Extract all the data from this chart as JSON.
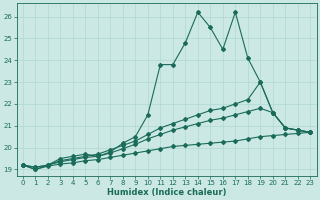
{
  "xlabel": "Humidex (Indice chaleur)",
  "bg_color": "#cbe8e4",
  "grid_color": "#b0d8d0",
  "line_color": "#1a6b5a",
  "xlim": [
    -0.5,
    23.5
  ],
  "ylim": [
    18.7,
    26.6
  ],
  "xticks": [
    0,
    1,
    2,
    3,
    4,
    5,
    6,
    7,
    8,
    9,
    10,
    11,
    12,
    13,
    14,
    15,
    16,
    17,
    18,
    19,
    20,
    21,
    22,
    23
  ],
  "yticks": [
    19,
    20,
    21,
    22,
    23,
    24,
    25,
    26
  ],
  "series": {
    "line1": [
      19.2,
      19.0,
      19.2,
      19.5,
      19.6,
      19.7,
      19.6,
      19.8,
      20.2,
      20.5,
      21.5,
      23.8,
      23.8,
      24.8,
      26.2,
      25.5,
      24.5,
      26.2,
      24.1,
      23.0,
      21.6,
      20.9,
      20.8,
      20.7
    ],
    "line2": [
      19.2,
      19.1,
      19.2,
      19.4,
      19.5,
      19.6,
      19.7,
      19.9,
      20.1,
      20.3,
      20.6,
      20.9,
      21.1,
      21.3,
      21.5,
      21.7,
      21.8,
      22.0,
      22.2,
      23.0,
      21.6,
      20.9,
      20.8,
      20.7
    ],
    "line3": [
      19.2,
      19.1,
      19.2,
      19.35,
      19.45,
      19.55,
      19.6,
      19.75,
      19.95,
      20.15,
      20.4,
      20.6,
      20.8,
      20.95,
      21.1,
      21.25,
      21.35,
      21.5,
      21.65,
      21.8,
      21.6,
      20.9,
      20.8,
      20.7
    ],
    "line4": [
      19.2,
      19.0,
      19.15,
      19.25,
      19.3,
      19.4,
      19.45,
      19.55,
      19.65,
      19.75,
      19.85,
      19.95,
      20.05,
      20.1,
      20.15,
      20.2,
      20.25,
      20.3,
      20.4,
      20.5,
      20.55,
      20.6,
      20.65,
      20.7
    ]
  }
}
